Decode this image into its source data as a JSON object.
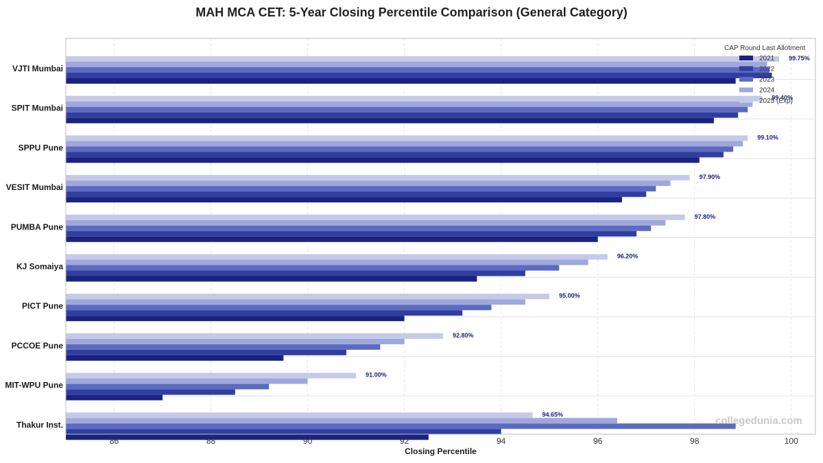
{
  "chart_data": {
    "type": "bar",
    "orientation": "horizontal",
    "title": "MAH MCA CET: 5-Year Closing Percentile Comparison (General Category)",
    "xlabel": "Closing Percentile",
    "ylabel": "",
    "xlim": [
      85,
      100.5
    ],
    "xticks": [
      86,
      88,
      90,
      92,
      94,
      96,
      98,
      100
    ],
    "grid": true,
    "legend": {
      "title": "CAP Round Last Allotment",
      "placement": "top-right"
    },
    "categories": [
      "VJTI Mumbai",
      "SPIT Mumbai",
      "SPPU Pune",
      "VESIT Mumbai",
      "PUMBA Pune",
      "KJ Somaiya",
      "PICT Pune",
      "PCCOE Pune",
      "MIT-WPU Pune",
      "Thakur Inst."
    ],
    "series": [
      {
        "name": "2021",
        "color": "#1a237e",
        "values": [
          98.85,
          98.4,
          98.1,
          96.5,
          96.0,
          93.5,
          92.0,
          89.5,
          87.0,
          92.5
        ]
      },
      {
        "name": "2022",
        "color": "#303f9f",
        "values": [
          99.6,
          98.9,
          98.6,
          97.0,
          96.8,
          94.5,
          93.2,
          90.8,
          88.5,
          94.0
        ]
      },
      {
        "name": "2023",
        "color": "#5c6bc0",
        "values": [
          99.55,
          99.1,
          98.8,
          97.2,
          97.1,
          95.2,
          93.8,
          91.5,
          89.2,
          98.85
        ]
      },
      {
        "name": "2024",
        "color": "#9fa8da",
        "values": [
          99.5,
          99.2,
          99.0,
          97.5,
          97.4,
          95.8,
          94.5,
          92.0,
          90.0,
          96.4
        ]
      },
      {
        "name": "2025 (Exp)",
        "color": "#c5cae9",
        "values": [
          99.75,
          99.4,
          99.1,
          97.9,
          97.8,
          96.2,
          95.0,
          92.8,
          91.0,
          94.65
        ]
      }
    ],
    "data_labels": [
      "99.75%",
      "99.40%",
      "99.10%",
      "97.90%",
      "97.80%",
      "96.20%",
      "95.00%",
      "92.80%",
      "91.00%",
      "94.65%"
    ]
  },
  "watermark": "collegedunia.com"
}
